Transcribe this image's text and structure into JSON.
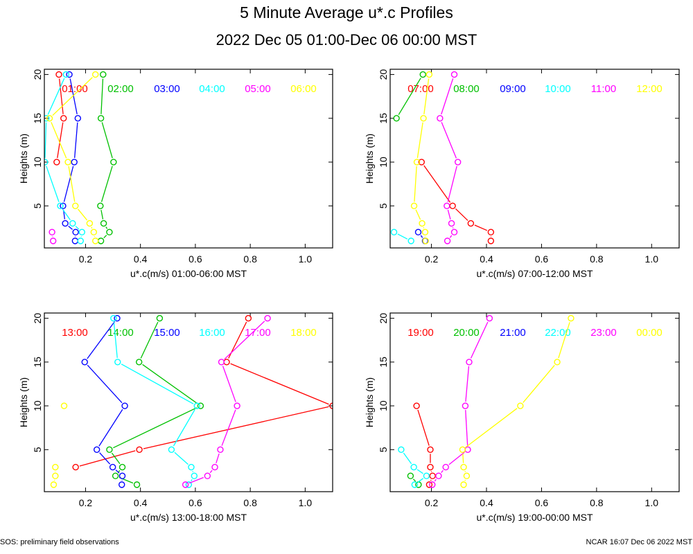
{
  "title": "5 Minute Average u*.c Profiles",
  "subtitle": "2022 Dec 05 01:00-Dec 06 00:00 MST",
  "footer_left": "SOS: preliminary field observations",
  "footer_right": "NCAR 16:07 Dec 06 2022 MST",
  "colors": [
    "#ff0000",
    "#00c000",
    "#0000ff",
    "#00ffff",
    "#ff00ff",
    "#ffff00"
  ],
  "chart_data": [
    {
      "type": "line",
      "xlabel": "u*.c(m/s) 01:00-06:00 MST",
      "ylabel": "Heights (m)",
      "xlim": [
        0.05,
        1.1
      ],
      "ylim": [
        0.2,
        20.6
      ],
      "xticks": [
        "0.2",
        "0.4",
        "0.6",
        "0.8",
        "1.0"
      ],
      "yticks": [
        "5",
        "10",
        "15",
        "20"
      ],
      "heights": [
        1,
        2,
        3,
        5,
        10,
        15,
        20
      ],
      "series": [
        {
          "name": "01:00",
          "values": [
            null,
            null,
            null,
            null,
            0.095,
            0.12,
            0.103
          ]
        },
        {
          "name": "02:00",
          "values": [
            0.256,
            0.287,
            0.266,
            0.254,
            0.302,
            0.256,
            0.264
          ]
        },
        {
          "name": "03:00",
          "values": [
            0.162,
            0.164,
            0.126,
            0.118,
            0.159,
            0.172,
            0.141
          ]
        },
        {
          "name": "04:00",
          "values": [
            0.182,
            0.187,
            0.153,
            0.108,
            0.052,
            0.057,
            0.129
          ]
        },
        {
          "name": "05:00",
          "values": [
            0.082,
            0.078,
            null,
            null,
            null,
            null,
            null
          ]
        },
        {
          "name": "06:00",
          "values": [
            0.236,
            0.23,
            0.215,
            0.163,
            0.136,
            0.069,
            0.236
          ]
        }
      ]
    },
    {
      "type": "line",
      "xlabel": "u*.c(m/s) 07:00-12:00 MST",
      "ylabel": "Heights (m)",
      "xlim": [
        0.05,
        1.1
      ],
      "ylim": [
        0.2,
        20.6
      ],
      "xticks": [
        "0.2",
        "0.4",
        "0.6",
        "0.8",
        "1.0"
      ],
      "yticks": [
        "5",
        "10",
        "15",
        "20"
      ],
      "heights": [
        1,
        2,
        3,
        5,
        10,
        15,
        20
      ],
      "series": [
        {
          "name": "07:00",
          "values": [
            0.416,
            0.416,
            0.343,
            0.277,
            0.164,
            null,
            null
          ]
        },
        {
          "name": "08:00",
          "values": [
            null,
            null,
            null,
            null,
            null,
            0.073,
            0.169
          ]
        },
        {
          "name": "09:00",
          "values": [
            0.177,
            0.152,
            null,
            null,
            null,
            null,
            null
          ]
        },
        {
          "name": "10:00",
          "values": [
            0.126,
            0.064,
            null,
            null,
            null,
            null,
            null
          ]
        },
        {
          "name": "11:00",
          "values": [
            0.258,
            0.283,
            0.273,
            0.256,
            0.296,
            0.231,
            0.283
          ]
        },
        {
          "name": "12:00",
          "values": [
            0.179,
            0.177,
            0.166,
            0.137,
            0.147,
            0.171,
            0.192
          ]
        }
      ]
    },
    {
      "type": "line",
      "xlabel": "u*.c(m/s) 13:00-18:00 MST",
      "ylabel": "Heights (m)",
      "xlim": [
        0.05,
        1.1
      ],
      "ylim": [
        0.2,
        20.6
      ],
      "xticks": [
        "0.2",
        "0.4",
        "0.6",
        "0.8",
        "1.0"
      ],
      "yticks": [
        "5",
        "10",
        "15",
        "20"
      ],
      "heights": [
        1,
        2,
        3,
        5,
        10,
        15,
        20
      ],
      "series": [
        {
          "name": "13:00",
          "values": [
            null,
            null,
            0.164,
            0.396,
            1.1,
            0.714,
            0.793
          ]
        },
        {
          "name": "14:00",
          "values": [
            0.387,
            0.309,
            0.334,
            0.287,
            0.619,
            0.395,
            0.47
          ]
        },
        {
          "name": "15:00",
          "values": [
            0.332,
            0.334,
            0.299,
            0.241,
            0.343,
            0.197,
            0.315
          ]
        },
        {
          "name": "16:00",
          "values": [
            0.576,
            0.596,
            0.585,
            0.513,
            0.606,
            0.317,
            0.302
          ]
        },
        {
          "name": "17:00",
          "values": [
            0.564,
            0.644,
            0.671,
            0.691,
            0.752,
            0.695,
            0.863
          ]
        },
        {
          "name": "18:00",
          "values": [
            0.084,
            0.09,
            0.09,
            null,
            0.122,
            null,
            null
          ]
        }
      ]
    },
    {
      "type": "line",
      "xlabel": "u*.c(m/s) 19:00-00:00 MST",
      "ylabel": "Heights (m)",
      "xlim": [
        0.05,
        1.1
      ],
      "ylim": [
        0.2,
        20.6
      ],
      "xticks": [
        "0.2",
        "0.4",
        "0.6",
        "0.8",
        "1.0"
      ],
      "yticks": [
        "5",
        "10",
        "15",
        "20"
      ],
      "heights": [
        1,
        2,
        3,
        5,
        10,
        15,
        20
      ],
      "series": [
        {
          "name": "19:00",
          "values": [
            0.192,
            0.204,
            0.196,
            0.196,
            0.146,
            null,
            null
          ]
        },
        {
          "name": "20:00",
          "values": [
            0.153,
            0.124,
            null,
            null,
            null,
            null,
            null
          ]
        },
        {
          "name": "21:00",
          "values": [
            null,
            null,
            null,
            null,
            null,
            null,
            null
          ]
        },
        {
          "name": "22:00",
          "values": [
            0.139,
            0.182,
            0.136,
            0.09,
            null,
            null,
            null
          ]
        },
        {
          "name": "23:00",
          "values": [
            0.203,
            0.226,
            0.252,
            0.332,
            0.323,
            0.337,
            0.411
          ]
        },
        {
          "name": "00:00",
          "values": [
            0.317,
            0.328,
            0.317,
            0.313,
            0.523,
            0.657,
            0.707
          ]
        }
      ]
    }
  ]
}
